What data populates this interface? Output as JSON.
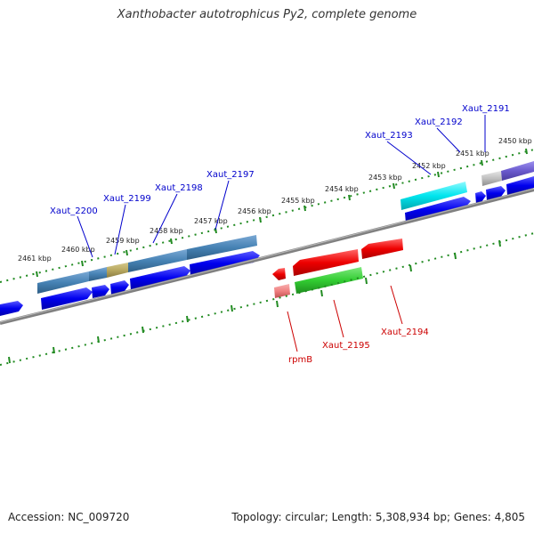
{
  "title": "Xanthobacter autotrophicus Py2, complete genome",
  "footer": {
    "accession": "Accession: NC_009720",
    "topology": "Topology: circular; Length: 5,308,934 bp; Genes: 4,805"
  },
  "ticks": [
    "2461 kbp",
    "2460 kbp",
    "2459 kbp",
    "2458 kbp",
    "2457 kbp",
    "2456 kbp",
    "2455 kbp",
    "2454 kbp",
    "2453 kbp",
    "2452 kbp",
    "2451 kbp",
    "2450 kbp"
  ],
  "labels": {
    "xaut_2200": "Xaut_2200",
    "xaut_2199": "Xaut_2199",
    "xaut_2198": "Xaut_2198",
    "xaut_2197": "Xaut_2197",
    "xaut_2193": "Xaut_2193",
    "xaut_2192": "Xaut_2192",
    "xaut_2191": "Xaut_2191",
    "rpmb": "rpmB",
    "xaut_2195": "Xaut_2195",
    "xaut_2194": "Xaut_2194"
  },
  "colors": {
    "forward_gene": "#0000ee",
    "reverse_gene": "#ee0000",
    "forward_label": "#0000cc",
    "reverse_label": "#cc0000",
    "backbone": "#808080",
    "tick": "#228b22",
    "steelblue": "#4682b4",
    "khaki": "#b8a860",
    "cyan": "#00e5ee",
    "slateblue": "#6a5acd",
    "silver": "#c0c0c0",
    "green": "#32cd32",
    "pink": "#f08080"
  }
}
